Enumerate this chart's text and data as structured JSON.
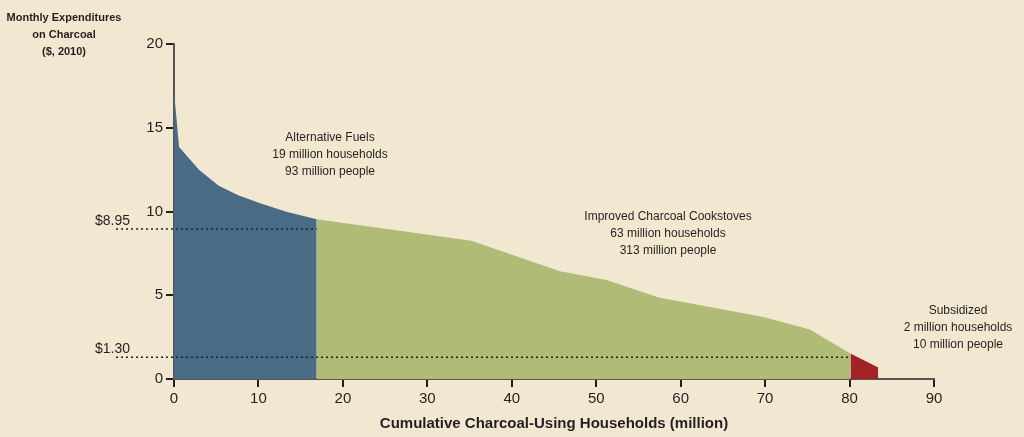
{
  "chart_data": {
    "type": "area",
    "xlabel": "Cumulative Charcoal-Using Households (million)",
    "ylabel": "Monthly Expenditures\non Charcoal\n($, 2010)",
    "series": [
      {
        "color": "#4a6b85",
        "x": [
          0,
          0.6,
          2.96,
          5.25,
          7.6,
          10.2,
          13.3,
          16.9
        ],
        "values": [
          17.2,
          13.85,
          12.5,
          11.55,
          10.97,
          10.5,
          9.98,
          9.53
        ]
      },
      {
        "color": "#b0bb75",
        "x": [
          16.9,
          29.9,
          35.2,
          45.7,
          51.2,
          57.4,
          69.8,
          75.3,
          80.1
        ],
        "values": [
          9.53,
          8.63,
          8.25,
          6.44,
          5.91,
          4.87,
          3.7,
          2.95,
          1.52
        ]
      },
      {
        "color": "#a32226",
        "x": [
          80.1,
          83.4
        ],
        "values": [
          1.52,
          0.69
        ]
      }
    ],
    "xlim": [
      0,
      90
    ],
    "xticks": [
      0,
      10,
      20,
      30,
      40,
      50,
      60,
      70,
      80,
      90
    ],
    "ylim": [
      0,
      20
    ],
    "yticks": [
      0,
      5,
      10,
      15,
      20
    ],
    "grid": false,
    "ref_lines": [
      {
        "axis": "y",
        "value": 8.95,
        "label": "$8.95",
        "line_style": "dotted"
      },
      {
        "axis": "y",
        "value": 1.3,
        "label": "$1.30",
        "line_style": "dotted"
      }
    ],
    "annotations": [
      "Alternative Fuels\n19 million households\n93 million people",
      "Improved Charcoal Cookstoves\n63 million households\n313 million people",
      "Subsidized\n2 million households\n10 million people"
    ]
  }
}
